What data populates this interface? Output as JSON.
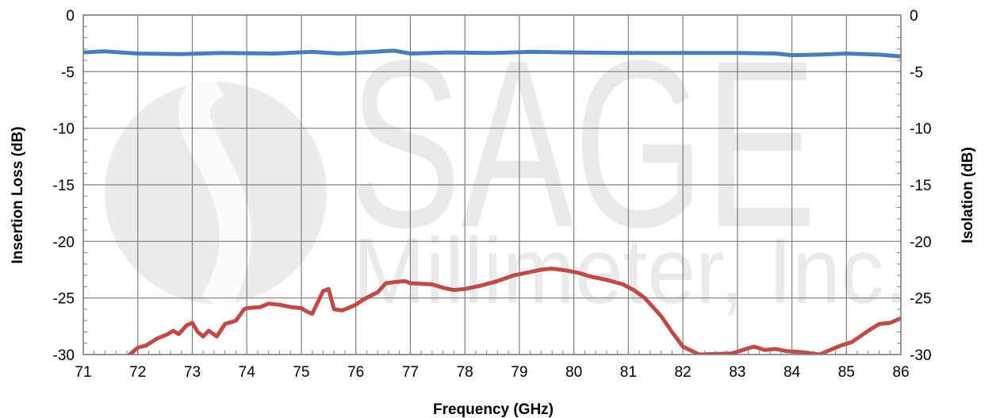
{
  "chart_data": {
    "type": "line",
    "title": "",
    "xlabel": "Frequency (GHz)",
    "ylabel": "Insertion Loss (dB)",
    "y2label": "Isolation (dB)",
    "xlim": [
      71,
      86
    ],
    "ylim": [
      -30,
      0
    ],
    "y2lim": [
      -30,
      0
    ],
    "grid": true,
    "x_ticks": [
      "71",
      "72",
      "73",
      "74",
      "75",
      "76",
      "77",
      "78",
      "79",
      "80",
      "81",
      "82",
      "83",
      "84",
      "85",
      "86"
    ],
    "y_ticks": [
      "0",
      "-5",
      "-10",
      "-15",
      "-20",
      "-25",
      "-30"
    ],
    "y2_ticks": [
      "0",
      "-5",
      "-10",
      "-15",
      "-20",
      "-25",
      "-30"
    ],
    "watermark": {
      "line1": "SAGE",
      "line2": "Millimeter, Inc."
    },
    "series": [
      {
        "color": "#4a7ebb",
        "axis": "left",
        "x": [
          71,
          71.4,
          72,
          72.8,
          73.5,
          74.5,
          75.2,
          75.7,
          76.3,
          76.7,
          77.0,
          77.7,
          78.5,
          79.2,
          80.0,
          81.0,
          82.0,
          83.0,
          83.7,
          84.0,
          84.5,
          85.0,
          85.6,
          86
        ],
        "y": [
          -3.3,
          -3.2,
          -3.4,
          -3.45,
          -3.35,
          -3.4,
          -3.25,
          -3.4,
          -3.25,
          -3.15,
          -3.4,
          -3.3,
          -3.35,
          -3.25,
          -3.3,
          -3.35,
          -3.35,
          -3.35,
          -3.4,
          -3.55,
          -3.5,
          -3.4,
          -3.5,
          -3.65
        ]
      },
      {
        "color": "#be4b48",
        "axis": "right",
        "x": [
          71.85,
          72.0,
          72.15,
          72.35,
          72.55,
          72.65,
          72.75,
          72.9,
          73.0,
          73.1,
          73.2,
          73.3,
          73.45,
          73.6,
          73.8,
          73.95,
          74.0,
          74.25,
          74.4,
          74.6,
          74.8,
          75.0,
          75.1,
          75.2,
          75.4,
          75.5,
          75.6,
          75.75,
          76.0,
          76.15,
          76.4,
          76.55,
          76.7,
          76.9,
          77.0,
          77.4,
          77.6,
          77.8,
          78.0,
          78.3,
          78.6,
          78.9,
          79.2,
          79.4,
          79.6,
          79.9,
          80.1,
          80.3,
          80.6,
          80.9,
          81.1,
          81.3,
          81.6,
          81.8,
          82.0,
          82.3,
          82.9,
          83.1,
          83.3,
          83.5,
          83.7,
          83.9,
          84.2,
          84.5,
          84.9,
          85.1,
          85.4,
          85.6,
          85.8,
          86.0
        ],
        "y": [
          -30.0,
          -29.4,
          -29.2,
          -28.6,
          -28.2,
          -27.9,
          -28.2,
          -27.4,
          -27.2,
          -28.0,
          -28.4,
          -27.9,
          -28.4,
          -27.3,
          -27.0,
          -26.0,
          -25.9,
          -25.8,
          -25.5,
          -25.6,
          -25.8,
          -25.9,
          -26.2,
          -26.4,
          -24.4,
          -24.2,
          -26.0,
          -26.1,
          -25.6,
          -25.1,
          -24.5,
          -23.7,
          -23.6,
          -23.5,
          -23.7,
          -23.8,
          -24.1,
          -24.3,
          -24.2,
          -23.9,
          -23.5,
          -23.0,
          -22.7,
          -22.5,
          -22.4,
          -22.6,
          -22.8,
          -23.1,
          -23.4,
          -23.8,
          -24.3,
          -25.0,
          -26.6,
          -28.0,
          -29.3,
          -30.0,
          -29.9,
          -29.6,
          -29.3,
          -29.6,
          -29.5,
          -29.7,
          -29.8,
          -30.0,
          -29.2,
          -28.9,
          -27.9,
          -27.3,
          -27.2,
          -26.8
        ]
      }
    ]
  }
}
